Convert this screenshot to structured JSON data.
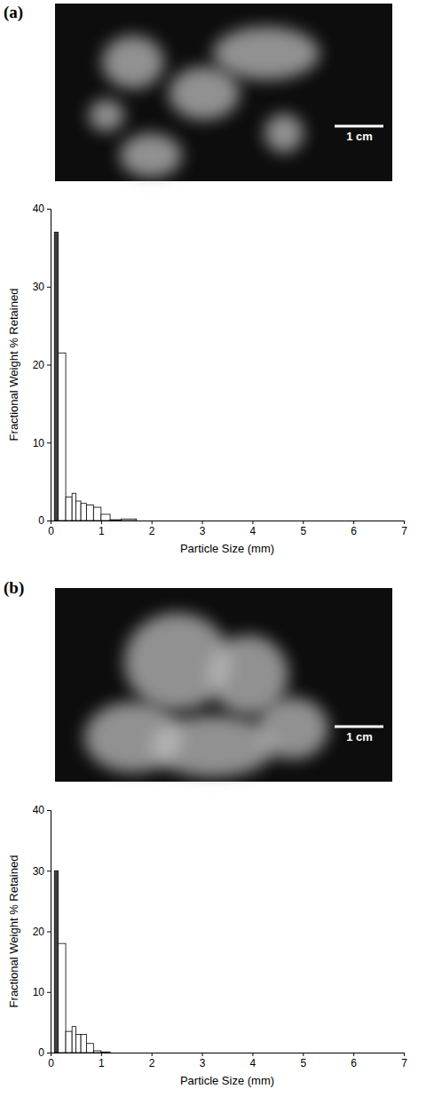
{
  "chart_data": [
    {
      "type": "histogram",
      "title": "(a)",
      "annotations": [
        "1 cm"
      ],
      "x_label": "Particle Size (mm)",
      "y_label": "Fractional Weight % Retained",
      "bins": [
        0.075,
        0.15,
        0.3,
        0.425,
        0.5,
        0.6,
        0.71,
        0.85,
        1.0,
        1.18,
        1.4,
        1.7
      ],
      "counts": [
        37,
        21.5,
        3,
        3.5,
        2.5,
        2.2,
        2,
        1.7,
        0.8,
        0.1,
        0.2
      ],
      "colors": [
        "#404040",
        "#ffffff",
        "#ffffff",
        "#ffffff",
        "#ffffff",
        "#ffffff",
        "#ffffff",
        "#ffffff",
        "#ffffff",
        "#ffffff",
        "#ffffff"
      ],
      "xlim": [
        0,
        7
      ],
      "xticks": [
        0,
        1,
        2,
        3,
        4,
        5,
        6,
        7
      ],
      "ylim": [
        0,
        40
      ],
      "yticks": [
        0,
        10,
        20,
        30,
        40
      ],
      "grid": false
    },
    {
      "type": "histogram",
      "title": "(b)",
      "annotations": [
        "1 cm"
      ],
      "x_label": "Particle Size (mm)",
      "y_label": "Fractional Weight % Retained",
      "bins": [
        0.075,
        0.15,
        0.3,
        0.425,
        0.5,
        0.6,
        0.71,
        0.85,
        1.0,
        1.18,
        1.4,
        1.7
      ],
      "counts": [
        30,
        18,
        3.5,
        4.3,
        3,
        3,
        1.5,
        0.3,
        0.1,
        0,
        0
      ],
      "colors": [
        "#404040",
        "#ffffff",
        "#ffffff",
        "#ffffff",
        "#ffffff",
        "#ffffff",
        "#ffffff",
        "#ffffff",
        "#ffffff",
        "#ffffff",
        "#ffffff"
      ],
      "xlim": [
        0,
        7
      ],
      "xticks": [
        0,
        1,
        2,
        3,
        4,
        5,
        6,
        7
      ],
      "ylim": [
        0,
        40
      ],
      "yticks": [
        0,
        10,
        20,
        30,
        40
      ],
      "grid": false
    }
  ]
}
